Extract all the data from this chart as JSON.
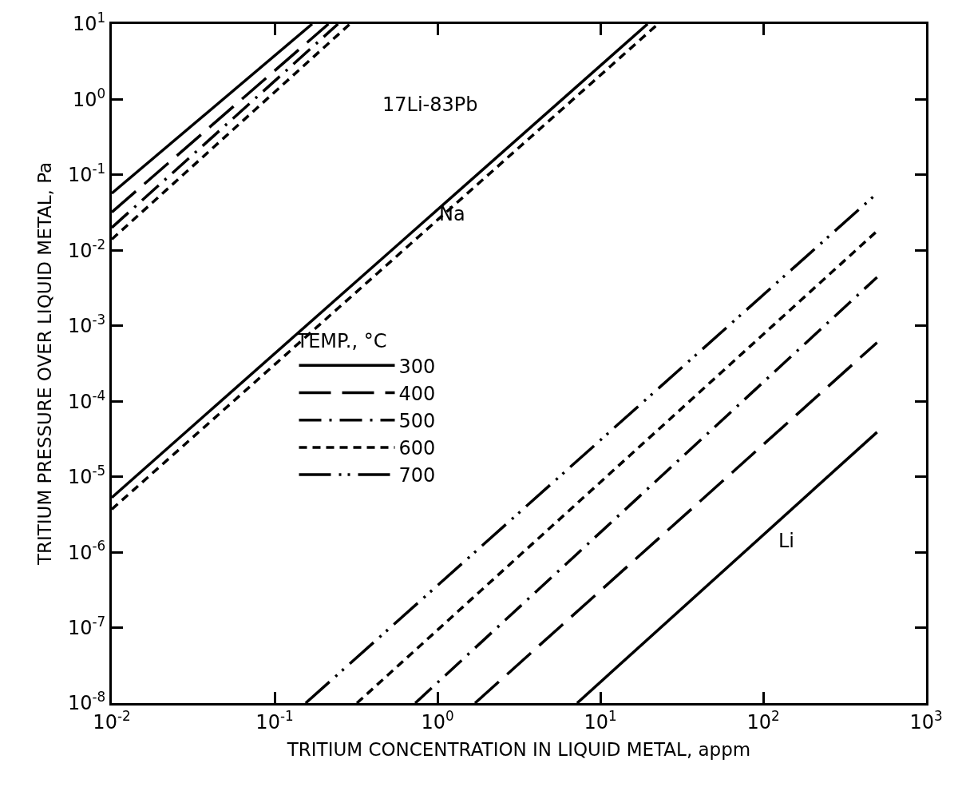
{
  "chart_data": {
    "type": "line",
    "xlabel": "TRITIUM CONCENTRATION IN LIQUID METAL, appm",
    "ylabel": "TRITIUM PRESSURE OVER LIQUID METAL, Pa",
    "legend_title": "TEMP., °C",
    "legend": "center",
    "log": "xy",
    "grid": false,
    "marker": "none",
    "xlim": [
      0.01,
      1000
    ],
    "ylim": [
      1e-08,
      10
    ],
    "xticks": [
      {
        "value": 0.01,
        "label": "10$^{-2}$"
      },
      {
        "value": 0.1,
        "label": "10$^{-1}$"
      },
      {
        "value": 1,
        "label": "10$^{0}$"
      },
      {
        "value": 10,
        "label": "10$^{1}$"
      },
      {
        "value": 100,
        "label": "10$^{2}$"
      },
      {
        "value": 1000,
        "label": "10$^{3}$"
      }
    ],
    "yticks": [
      {
        "value": 1e-08,
        "label": "10$^{-8}$"
      },
      {
        "value": 1e-07,
        "label": "10$^{-7}$"
      },
      {
        "value": 1e-06,
        "label": "10$^{-6}$"
      },
      {
        "value": 1e-05,
        "label": "10$^{-5}$"
      },
      {
        "value": 0.0001,
        "label": "10$^{-4}$"
      },
      {
        "value": 0.001,
        "label": "10$^{-3}$"
      },
      {
        "value": 0.01,
        "label": "10$^{-2}$"
      },
      {
        "value": 0.1,
        "label": "10$^{-1}$"
      },
      {
        "value": 1,
        "label": "10$^{0}$"
      },
      {
        "value": 10,
        "label": "10$^{1}$"
      }
    ],
    "series": [
      {
        "name": "300",
        "color": "#000000",
        "line_style": "solid",
        "x": [
          7.2,
          500
        ],
        "values": [
          1e-08,
          3.9e-05
        ]
      },
      {
        "name": "400",
        "color": "#000000",
        "line_style": "longdash",
        "x": [
          1.7,
          500
        ],
        "values": [
          1e-08,
          0.0006
        ]
      },
      {
        "name": "500",
        "color": "#000000",
        "line_style": "dashdot",
        "x": [
          0.73,
          500
        ],
        "values": [
          1e-08,
          0.0044
        ]
      },
      {
        "name": "600",
        "color": "#000000",
        "line_style": "dashed",
        "x": [
          0.32,
          500
        ],
        "values": [
          1e-08,
          0.018
        ]
      },
      {
        "name": "700",
        "color": "#000000",
        "line_style": "longdashdot",
        "x": [
          0.155,
          500
        ],
        "values": [
          1e-08,
          0.057
        ]
      },
      {
        "color": "#000000",
        "line_style": "solid",
        "x": [
          0.01,
          19.5
        ],
        "values": [
          5.3e-06,
          10
        ]
      },
      {
        "color": "#000000",
        "line_style": "dashed",
        "x": [
          0.01,
          22.6
        ],
        "values": [
          3.7e-06,
          10
        ]
      },
      {
        "color": "#000000",
        "line_style": "solid",
        "x": [
          0.01,
          0.17
        ],
        "values": [
          0.057,
          10
        ]
      },
      {
        "color": "#000000",
        "line_style": "longdash",
        "x": [
          0.01,
          0.214
        ],
        "values": [
          0.032,
          10
        ]
      },
      {
        "color": "#000000",
        "line_style": "dashdot",
        "x": [
          0.01,
          0.245
        ],
        "values": [
          0.02,
          10
        ]
      },
      {
        "color": "#000000",
        "line_style": "dashed",
        "x": [
          0.01,
          0.29
        ],
        "values": [
          0.014,
          10
        ]
      }
    ],
    "annotations": [
      "17Li-83Pb",
      {
        "text": "Na",
        "x": 1.23,
        "y": 0.03
      },
      "Li"
    ]
  }
}
